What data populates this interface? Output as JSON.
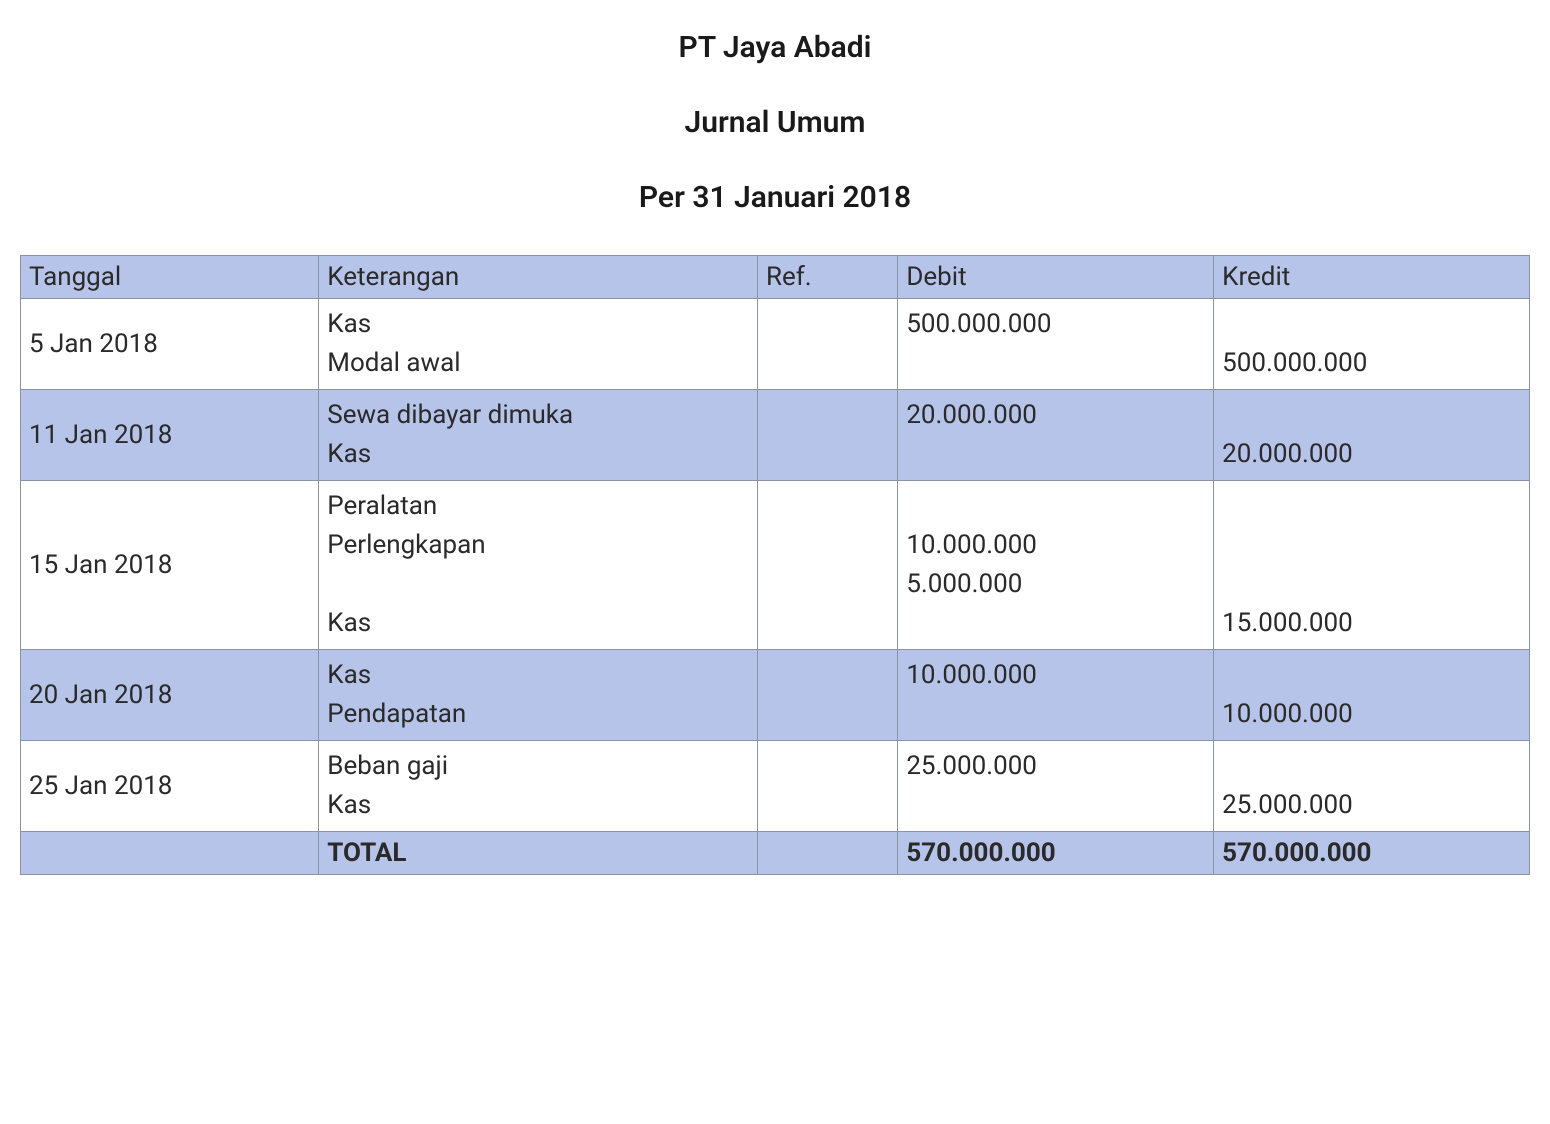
{
  "header": {
    "company": "PT Jaya Abadi",
    "title": "Jurnal Umum",
    "period": "Per 31 Januari 2018"
  },
  "table": {
    "columns": {
      "tanggal": "Tanggal",
      "keterangan": "Keterangan",
      "ref": "Ref.",
      "debit": "Debit",
      "kredit": "Kredit"
    },
    "rows": [
      {
        "shaded": false,
        "tanggal": "5 Jan 2018",
        "ket1": "Kas",
        "ket2": "Modal awal",
        "debit1": "500.000.000",
        "kredit2": "500.000.000"
      },
      {
        "shaded": true,
        "tanggal": "11 Jan 2018",
        "ket1": "Sewa dibayar dimuka",
        "ket2": "Kas",
        "debit1": "20.000.000",
        "kredit2": "20.000.000"
      },
      {
        "shaded": false,
        "tanggal": "15 Jan 2018",
        "ket1": "Peralatan",
        "ket2": "Perlengkapan",
        "ket3": "Kas",
        "debit1": "10.000.000",
        "debit2": "5.000.000",
        "kredit3": "15.000.000"
      },
      {
        "shaded": true,
        "tanggal": "20 Jan 2018",
        "ket1": "Kas",
        "ket2": "Pendapatan",
        "debit1": "10.000.000",
        "kredit2": "10.000.000"
      },
      {
        "shaded": false,
        "tanggal": "25 Jan 2018",
        "ket1": "Beban gaji",
        "ket2": "Kas",
        "debit1": "25.000.000",
        "kredit2": "25.000.000"
      }
    ],
    "totals": {
      "label": "TOTAL",
      "debit": "570.000.000",
      "kredit": "570.000.000"
    }
  },
  "style": {
    "header_bg": "#b7c4ea",
    "shaded_bg": "#b7c4ea",
    "border_color": "#8a93a6",
    "text_color": "#2a2a2a",
    "font_size_header": 30,
    "font_size_table": 26
  }
}
